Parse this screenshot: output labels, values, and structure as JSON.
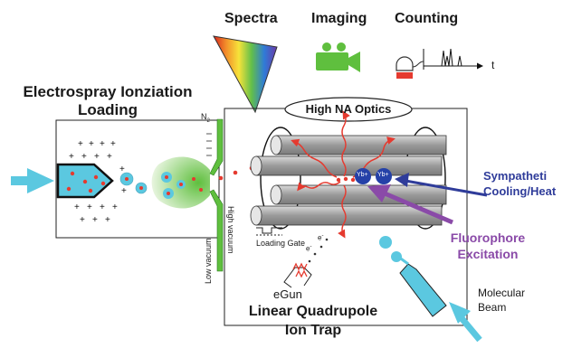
{
  "top_labels": {
    "spectra": "Spectra",
    "imaging": "Imaging",
    "counting": "Counting",
    "time_axis": "t"
  },
  "left_title": {
    "line1": "Electrospray Ionziation",
    "line2": "Loading"
  },
  "optics": "High NA Optics",
  "gas": "N",
  "gas_subscript": "2",
  "vacuum": {
    "low": "Low vacuum",
    "high": "High vacuum"
  },
  "gate": "Loading Gate",
  "electron": "e",
  "electron_superscript": "-",
  "egun": "eGun",
  "ions": {
    "ion1": "Yb+",
    "ion2": "Yb+"
  },
  "sympathetic": {
    "line1": "Sympatheti",
    "line2": "Cooling/Heat"
  },
  "fluorophore": {
    "line1": "Fluorophore",
    "line2": "Excitation"
  },
  "molecular": {
    "line1": "Molecular",
    "line2": "Beam"
  },
  "bottom_title": {
    "line1": "Linear Quadrupole",
    "line2": "Ion Trap"
  },
  "colors": {
    "cyan": "#5bc8e0",
    "green": "#5fbf3e",
    "red": "#e53a2f",
    "blue_arrow": "#2f3c9a",
    "purple_arrow": "#8a4aa8",
    "ion_blue": "#2541a8"
  }
}
